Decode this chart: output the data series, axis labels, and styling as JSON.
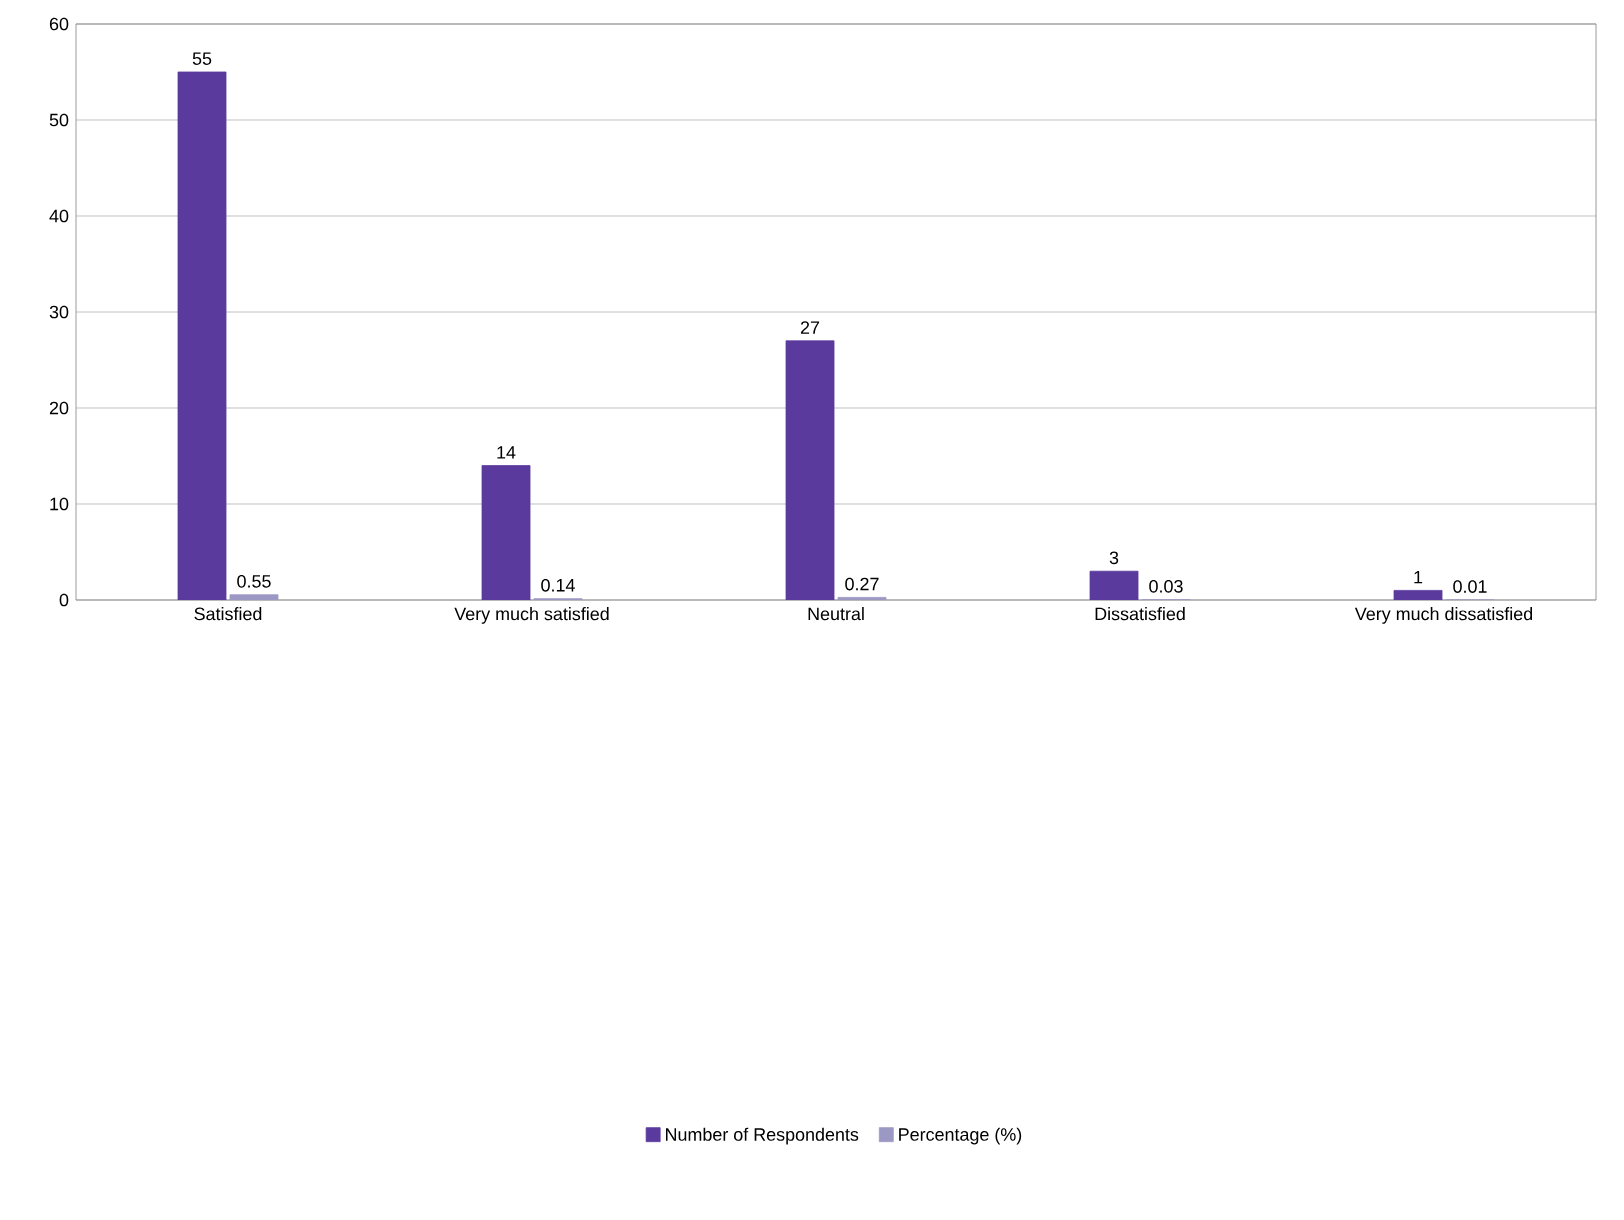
{
  "chart_data": {
    "type": "bar",
    "categories": [
      "Satisfied",
      "Very much satisfied",
      "Neutral",
      "Dissatisfied",
      "Very much dissatisfied"
    ],
    "series": [
      {
        "name": "Number of Respondents",
        "color": "#5b3a9e",
        "values": [
          55,
          14,
          27,
          3,
          1
        ]
      },
      {
        "name": "Percentage (%)",
        "color": "#9c98c4",
        "values": [
          0.55,
          0.14,
          0.27,
          0.03,
          0.01
        ]
      }
    ],
    "ylim": [
      0,
      60
    ],
    "yticks": [
      0,
      10,
      20,
      30,
      40,
      50,
      60
    ],
    "grid": "y",
    "legend": "bottom",
    "data_labels": true
  }
}
